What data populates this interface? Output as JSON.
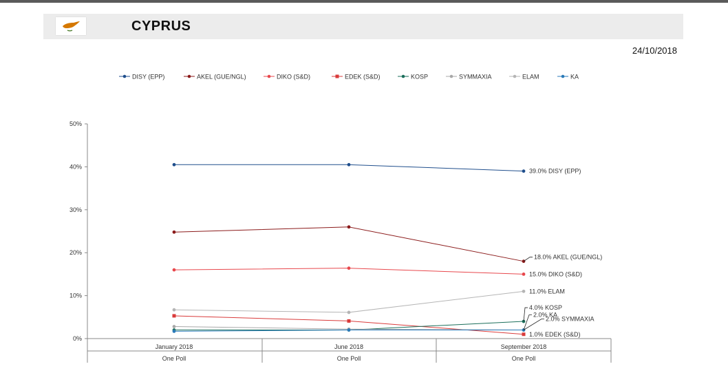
{
  "header": {
    "country": "CYPRUS",
    "date": "24/10/2018"
  },
  "colors": {
    "DISY (EPP)": "#1f4e8c",
    "AKEL (GUE/NGL)": "#8b1a1a",
    "DIKO (S&D)": "#e8474c",
    "EDEK (S&D)": "#d93a3a",
    "KOSP": "#1a6e5a",
    "SYMMAXIA": "#a8a8a8",
    "ELAM": "#b5b5b5",
    "KA": "#2a7ab8"
  },
  "chart_data": {
    "type": "line",
    "categories": [
      "January 2018",
      "June 2018",
      "September 2018"
    ],
    "sub_categories": [
      "One Poll",
      "One Poll",
      "One Poll"
    ],
    "ylim": [
      0,
      50
    ],
    "yticks": [
      0,
      10,
      20,
      30,
      40,
      50
    ],
    "ytick_labels": [
      "0%",
      "10%",
      "20%",
      "30%",
      "40%",
      "50%"
    ],
    "legend_position": "top",
    "series": [
      {
        "name": "DISY (EPP)",
        "values": [
          40.5,
          40.5,
          39.0
        ],
        "marker": "circle",
        "end_label": "39.0% DISY (EPP)"
      },
      {
        "name": "AKEL (GUE/NGL)",
        "values": [
          24.8,
          26.0,
          18.0
        ],
        "marker": "circle",
        "end_label": "18.0% AKEL (GUE/NGL)"
      },
      {
        "name": "DIKO (S&D)",
        "values": [
          16.0,
          16.4,
          15.0
        ],
        "marker": "circle",
        "end_label": "15.0% DIKO (S&D)"
      },
      {
        "name": "EDEK (S&D)",
        "values": [
          5.3,
          4.1,
          1.0
        ],
        "marker": "square",
        "end_label": "1.0% EDEK (S&D)"
      },
      {
        "name": "KOSP",
        "values": [
          2.0,
          2.0,
          4.0
        ],
        "marker": "circle",
        "end_label": "4.0% KOSP"
      },
      {
        "name": "SYMMAXIA",
        "values": [
          2.8,
          2.2,
          2.0
        ],
        "marker": "circle",
        "end_label": "2.0% SYMMAXIA"
      },
      {
        "name": "ELAM",
        "values": [
          6.7,
          6.1,
          11.0
        ],
        "marker": "circle",
        "end_label": "11.0% ELAM"
      },
      {
        "name": "KA",
        "values": [
          1.7,
          2.0,
          2.0
        ],
        "marker": "circle",
        "end_label": "2.0% KA"
      }
    ]
  }
}
